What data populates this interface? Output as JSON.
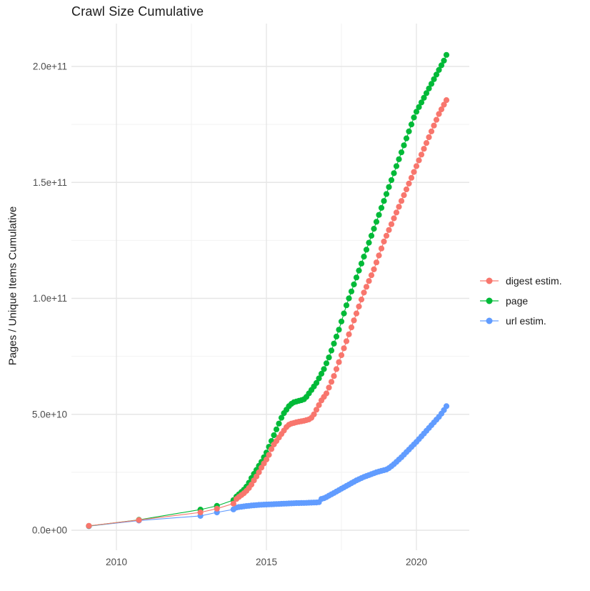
{
  "chart_data": {
    "type": "scatter",
    "title": "Crawl Size Cumulative",
    "xlabel": "",
    "ylabel": "Pages / Unique Items Cumulative",
    "x_unit": "year (decimal)",
    "value_unit": "items, values stored in billions (1e9)",
    "xlim": [
      2008.5,
      2021.76
    ],
    "ylim_e9": [
      -9,
      218
    ],
    "grid": true,
    "legend_position": "right",
    "axes": {
      "x": {
        "major_ticks": [
          {
            "label": "2010",
            "year": 2010
          },
          {
            "label": "2015",
            "year": 2015
          },
          {
            "label": "2020",
            "year": 2020
          }
        ],
        "minor_years": [
          2012.5,
          2017.5
        ]
      },
      "y": {
        "major_ticks": [
          {
            "label": "0.0e+00",
            "value_e9": 0
          },
          {
            "label": "5.0e+10",
            "value_e9": 50
          },
          {
            "label": "1.0e+11",
            "value_e9": 100
          },
          {
            "label": "1.5e+11",
            "value_e9": 150
          },
          {
            "label": "2.0e+11",
            "value_e9": 200
          }
        ],
        "minor_values_e9": [
          25,
          75,
          125,
          175
        ]
      }
    },
    "legend": {
      "items": [
        {
          "label": "digest estim.",
          "color": "#F8766D"
        },
        {
          "label": "page",
          "color": "#00BA38"
        },
        {
          "label": "url estim.",
          "color": "#619CFF"
        }
      ]
    },
    "series": [
      {
        "name": "digest estim.",
        "color": "#F8766D",
        "points": [
          [
            2009.08,
            1.9
          ],
          [
            2010.75,
            4.4
          ],
          [
            2012.8,
            7.7
          ],
          [
            2013.35,
            9.3
          ],
          [
            2013.9,
            11.5
          ],
          [
            2014,
            13.5
          ],
          [
            2014.083,
            14.4
          ],
          [
            2014.167,
            15.2
          ],
          [
            2014.25,
            16
          ],
          [
            2014.333,
            17
          ],
          [
            2014.417,
            18.2
          ],
          [
            2014.5,
            19.7
          ],
          [
            2014.583,
            21.5
          ],
          [
            2014.667,
            23.2
          ],
          [
            2014.75,
            25
          ],
          [
            2014.833,
            27
          ],
          [
            2014.917,
            28.8
          ],
          [
            2015,
            30.5
          ],
          [
            2015.083,
            32.5
          ],
          [
            2015.167,
            35
          ],
          [
            2015.25,
            37
          ],
          [
            2015.333,
            38.5
          ],
          [
            2015.417,
            40
          ],
          [
            2015.5,
            41.5
          ],
          [
            2015.583,
            43
          ],
          [
            2015.667,
            44.5
          ],
          [
            2015.75,
            45.5
          ],
          [
            2015.833,
            46
          ],
          [
            2015.917,
            46.3
          ],
          [
            2016,
            46.6
          ],
          [
            2016.083,
            46.8
          ],
          [
            2016.167,
            47
          ],
          [
            2016.25,
            47.2
          ],
          [
            2016.333,
            47.5
          ],
          [
            2016.417,
            47.8
          ],
          [
            2016.5,
            48.5
          ],
          [
            2016.583,
            50
          ],
          [
            2016.667,
            52
          ],
          [
            2016.75,
            54
          ],
          [
            2016.833,
            56
          ],
          [
            2016.917,
            57.5
          ],
          [
            2017,
            59
          ],
          [
            2017.083,
            61.5
          ],
          [
            2017.167,
            64
          ],
          [
            2017.25,
            66.5
          ],
          [
            2017.333,
            69.5
          ],
          [
            2017.417,
            72.5
          ],
          [
            2017.5,
            75.5
          ],
          [
            2017.583,
            78.5
          ],
          [
            2017.667,
            81.5
          ],
          [
            2017.75,
            84.5
          ],
          [
            2017.833,
            87.5
          ],
          [
            2017.917,
            90.5
          ],
          [
            2018,
            93.5
          ],
          [
            2018.083,
            96.5
          ],
          [
            2018.167,
            99.5
          ],
          [
            2018.25,
            102.5
          ],
          [
            2018.333,
            105
          ],
          [
            2018.417,
            107.5
          ],
          [
            2018.5,
            110
          ],
          [
            2018.583,
            112.5
          ],
          [
            2018.667,
            115.5
          ],
          [
            2018.75,
            118.5
          ],
          [
            2018.833,
            121.5
          ],
          [
            2018.917,
            124.5
          ],
          [
            2019,
            127
          ],
          [
            2019.083,
            129.5
          ],
          [
            2019.167,
            132
          ],
          [
            2019.25,
            134.5
          ],
          [
            2019.333,
            137
          ],
          [
            2019.417,
            139.5
          ],
          [
            2019.5,
            142
          ],
          [
            2019.583,
            144.5
          ],
          [
            2019.667,
            147
          ],
          [
            2019.75,
            149.5
          ],
          [
            2019.833,
            152
          ],
          [
            2019.917,
            154.5
          ],
          [
            2020,
            157
          ],
          [
            2020.083,
            159.5
          ],
          [
            2020.167,
            162
          ],
          [
            2020.25,
            164.5
          ],
          [
            2020.333,
            167
          ],
          [
            2020.417,
            169.5
          ],
          [
            2020.5,
            172
          ],
          [
            2020.583,
            174.5
          ],
          [
            2020.667,
            177
          ],
          [
            2020.75,
            179.5
          ],
          [
            2020.833,
            181.5
          ],
          [
            2020.917,
            183.5
          ],
          [
            2021,
            185.5
          ]
        ]
      },
      {
        "name": "page",
        "color": "#00BA38",
        "points": [
          [
            2009.08,
            1.85
          ],
          [
            2010.75,
            4.5
          ],
          [
            2012.8,
            8.9
          ],
          [
            2013.35,
            10.5
          ],
          [
            2013.9,
            13
          ],
          [
            2014,
            14.5
          ],
          [
            2014.083,
            15.5
          ],
          [
            2014.167,
            16.5
          ],
          [
            2014.25,
            17.5
          ],
          [
            2014.333,
            18.8
          ],
          [
            2014.417,
            20.5
          ],
          [
            2014.5,
            22.5
          ],
          [
            2014.583,
            24.3
          ],
          [
            2014.667,
            26
          ],
          [
            2014.75,
            27.8
          ],
          [
            2014.833,
            29.5
          ],
          [
            2014.917,
            31.5
          ],
          [
            2015,
            33.5
          ],
          [
            2015.083,
            36
          ],
          [
            2015.167,
            38.5
          ],
          [
            2015.25,
            41
          ],
          [
            2015.333,
            43.5
          ],
          [
            2015.417,
            46
          ],
          [
            2015.5,
            48.5
          ],
          [
            2015.583,
            50.5
          ],
          [
            2015.667,
            52
          ],
          [
            2015.75,
            53.5
          ],
          [
            2015.833,
            54.5
          ],
          [
            2015.917,
            55.2
          ],
          [
            2016,
            55.5
          ],
          [
            2016.083,
            55.8
          ],
          [
            2016.167,
            56.1
          ],
          [
            2016.25,
            56.5
          ],
          [
            2016.333,
            57.5
          ],
          [
            2016.417,
            59
          ],
          [
            2016.5,
            60.5
          ],
          [
            2016.583,
            62
          ],
          [
            2016.667,
            63.5
          ],
          [
            2016.75,
            65.5
          ],
          [
            2016.833,
            67.5
          ],
          [
            2016.917,
            69.5
          ],
          [
            2017,
            72
          ],
          [
            2017.083,
            74.5
          ],
          [
            2017.167,
            77.5
          ],
          [
            2017.25,
            80.5
          ],
          [
            2017.333,
            83.5
          ],
          [
            2017.417,
            86.5
          ],
          [
            2017.5,
            90
          ],
          [
            2017.583,
            93.5
          ],
          [
            2017.667,
            97
          ],
          [
            2017.75,
            100
          ],
          [
            2017.833,
            103
          ],
          [
            2017.917,
            106
          ],
          [
            2018,
            109
          ],
          [
            2018.083,
            112
          ],
          [
            2018.167,
            115
          ],
          [
            2018.25,
            118
          ],
          [
            2018.333,
            121
          ],
          [
            2018.417,
            124
          ],
          [
            2018.5,
            127
          ],
          [
            2018.583,
            130
          ],
          [
            2018.667,
            133
          ],
          [
            2018.75,
            136
          ],
          [
            2018.833,
            139
          ],
          [
            2018.917,
            142
          ],
          [
            2019,
            145
          ],
          [
            2019.083,
            148
          ],
          [
            2019.167,
            151
          ],
          [
            2019.25,
            154
          ],
          [
            2019.333,
            157
          ],
          [
            2019.417,
            160
          ],
          [
            2019.5,
            163
          ],
          [
            2019.583,
            166
          ],
          [
            2019.667,
            169
          ],
          [
            2019.75,
            172
          ],
          [
            2019.833,
            175
          ],
          [
            2019.917,
            178
          ],
          [
            2020,
            180.5
          ],
          [
            2020.083,
            182.5
          ],
          [
            2020.167,
            184.5
          ],
          [
            2020.25,
            186.5
          ],
          [
            2020.333,
            188.5
          ],
          [
            2020.417,
            190.5
          ],
          [
            2020.5,
            192.5
          ],
          [
            2020.583,
            194.5
          ],
          [
            2020.667,
            196.5
          ],
          [
            2020.75,
            198.5
          ],
          [
            2020.833,
            200.5
          ],
          [
            2020.917,
            202.5
          ],
          [
            2021,
            205
          ]
        ]
      },
      {
        "name": "url estim.",
        "color": "#619CFF",
        "points": [
          [
            2009.08,
            1.75
          ],
          [
            2010.75,
            4.2
          ],
          [
            2012.8,
            6.2
          ],
          [
            2013.35,
            7.7
          ],
          [
            2013.9,
            9
          ],
          [
            2014,
            9.8
          ],
          [
            2014.083,
            10
          ],
          [
            2014.167,
            10.15
          ],
          [
            2014.25,
            10.3
          ],
          [
            2014.333,
            10.45
          ],
          [
            2014.417,
            10.55
          ],
          [
            2014.5,
            10.65
          ],
          [
            2014.583,
            10.75
          ],
          [
            2014.667,
            10.85
          ],
          [
            2014.75,
            10.95
          ],
          [
            2014.833,
            11
          ],
          [
            2014.917,
            11.05
          ],
          [
            2015,
            11.1
          ],
          [
            2015.083,
            11.15
          ],
          [
            2015.167,
            11.2
          ],
          [
            2015.25,
            11.25
          ],
          [
            2015.333,
            11.3
          ],
          [
            2015.417,
            11.35
          ],
          [
            2015.5,
            11.4
          ],
          [
            2015.583,
            11.45
          ],
          [
            2015.667,
            11.5
          ],
          [
            2015.75,
            11.55
          ],
          [
            2015.833,
            11.6
          ],
          [
            2015.917,
            11.65
          ],
          [
            2016,
            11.7
          ],
          [
            2016.083,
            11.72
          ],
          [
            2016.167,
            11.75
          ],
          [
            2016.25,
            11.78
          ],
          [
            2016.333,
            11.8
          ],
          [
            2016.417,
            11.85
          ],
          [
            2016.5,
            11.9
          ],
          [
            2016.583,
            11.95
          ],
          [
            2016.667,
            12
          ],
          [
            2016.75,
            12.1
          ],
          [
            2016.833,
            13.5
          ],
          [
            2016.917,
            13.8
          ],
          [
            2017,
            14.3
          ],
          [
            2017.083,
            14.9
          ],
          [
            2017.167,
            15.5
          ],
          [
            2017.25,
            16.1
          ],
          [
            2017.333,
            16.7
          ],
          [
            2017.417,
            17.3
          ],
          [
            2017.5,
            17.9
          ],
          [
            2017.583,
            18.5
          ],
          [
            2017.667,
            19.1
          ],
          [
            2017.75,
            19.7
          ],
          [
            2017.833,
            20.3
          ],
          [
            2017.917,
            20.9
          ],
          [
            2018,
            21.5
          ],
          [
            2018.083,
            22
          ],
          [
            2018.167,
            22.5
          ],
          [
            2018.25,
            23
          ],
          [
            2018.333,
            23.4
          ],
          [
            2018.417,
            23.8
          ],
          [
            2018.5,
            24.2
          ],
          [
            2018.583,
            24.6
          ],
          [
            2018.667,
            25
          ],
          [
            2018.75,
            25.3
          ],
          [
            2018.833,
            25.6
          ],
          [
            2018.917,
            25.9
          ],
          [
            2019,
            26.2
          ],
          [
            2019.083,
            26.8
          ],
          [
            2019.167,
            27.6
          ],
          [
            2019.25,
            28.5
          ],
          [
            2019.333,
            29.5
          ],
          [
            2019.417,
            30.5
          ],
          [
            2019.5,
            31.5
          ],
          [
            2019.583,
            32.6
          ],
          [
            2019.667,
            33.7
          ],
          [
            2019.75,
            34.8
          ],
          [
            2019.833,
            35.9
          ],
          [
            2019.917,
            37
          ],
          [
            2020,
            38.1
          ],
          [
            2020.083,
            39.3
          ],
          [
            2020.167,
            40.5
          ],
          [
            2020.25,
            41.7
          ],
          [
            2020.333,
            42.9
          ],
          [
            2020.417,
            44.1
          ],
          [
            2020.5,
            45.3
          ],
          [
            2020.583,
            46.5
          ],
          [
            2020.667,
            47.7
          ],
          [
            2020.75,
            48.9
          ],
          [
            2020.833,
            50.3
          ],
          [
            2020.917,
            51.8
          ],
          [
            2021,
            53.5
          ]
        ]
      }
    ],
    "style": {
      "major_grid_color": "#e6e6e6",
      "minor_grid_color": "#f2f2f2",
      "tick_label_color": "#4d4d4d",
      "text_color": "#1a1a1a",
      "background": "#ffffff"
    }
  }
}
